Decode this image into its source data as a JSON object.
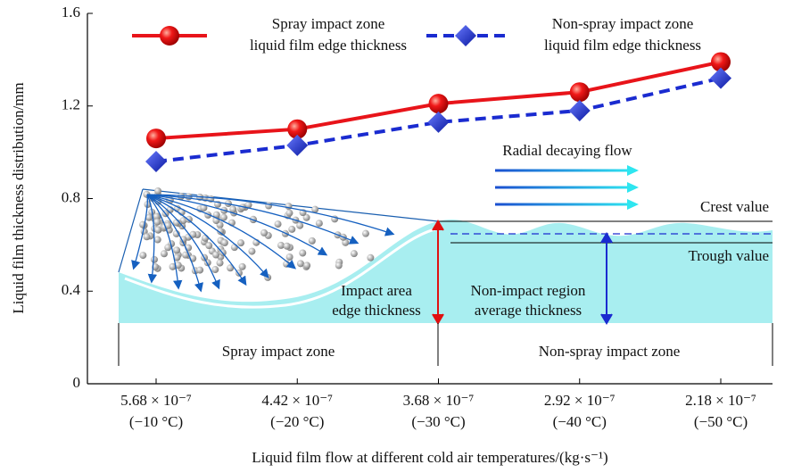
{
  "chart_data": {
    "type": "line",
    "x_label": "Liquid film flow at different cold air temperatures/(kg·s⁻¹)",
    "y_label": "Liquid film thickness distribution/mm",
    "categories": [
      "5.68 × 10⁻⁷",
      "4.42 × 10⁻⁷",
      "3.68 × 10⁻⁷",
      "2.92 × 10⁻⁷",
      "2.18 × 10⁻⁷"
    ],
    "category_temperatures": [
      "(−10 °C)",
      "(−20 °C)",
      "(−30 °C)",
      "(−40 °C)",
      "(−50 °C)"
    ],
    "series": [
      {
        "name": "Spray impact zone\nliquid film edge thickness",
        "color": "#e8141a",
        "marker": "circle",
        "dash": false,
        "values": [
          1.06,
          1.1,
          1.21,
          1.26,
          1.39
        ]
      },
      {
        "name": "Non-spray impact zone\nliquid film edge thickness",
        "color": "#1a2bd0",
        "marker": "diamond",
        "dash": true,
        "values": [
          0.96,
          1.03,
          1.13,
          1.18,
          1.32
        ]
      }
    ],
    "ylim": [
      0,
      1.6
    ],
    "yticks": [
      0,
      0.4,
      0.8,
      1.2,
      1.6
    ],
    "annotations": [
      "Radial decaying flow",
      "Crest value",
      "Trough value",
      "Impact area\nedge thickness",
      "Non-impact region\naverage thickness",
      "Spray impact zone",
      "Non-spray impact zone"
    ]
  }
}
